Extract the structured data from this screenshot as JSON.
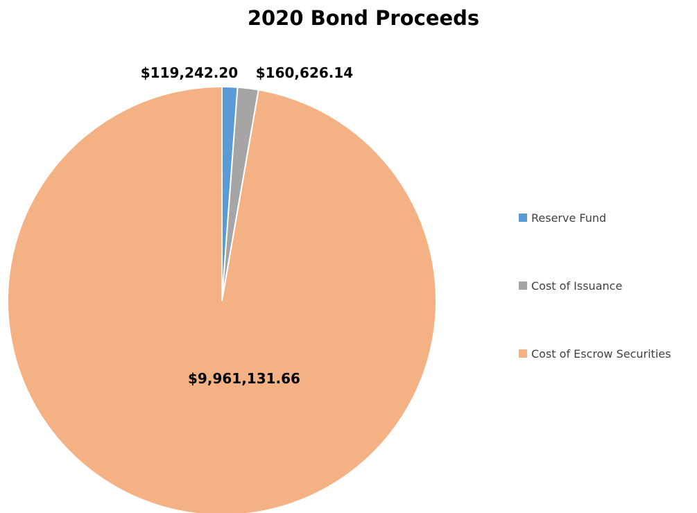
{
  "chart_data": {
    "type": "pie",
    "title": "2020 Bond Proceeds",
    "categories": [
      "Reserve Fund",
      "Cost of Issuance",
      "Cost of Escrow Securities"
    ],
    "values": [
      119242.2,
      160626.14,
      9961131.66
    ],
    "data_labels": [
      "$119,242.20",
      "$160,626.14",
      "$9,961,131.66"
    ],
    "colors": [
      "#5B9BD5",
      "#A5A5A5",
      "#F4B183"
    ],
    "start_angle_deg": 0,
    "direction": "clockwise",
    "legend": {
      "position": "right",
      "entries": [
        "Reserve Fund",
        "Cost of Issuance",
        "Cost of Escrow Securities"
      ]
    }
  }
}
